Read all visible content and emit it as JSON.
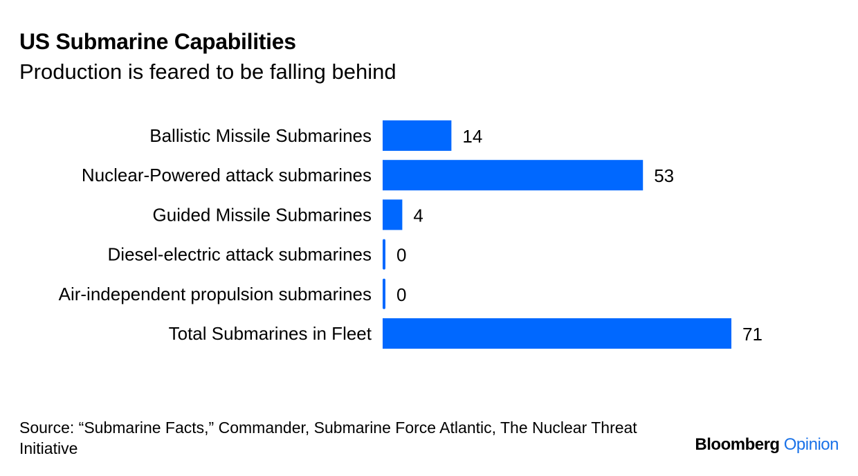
{
  "header": {
    "title": "US Submarine Capabilities",
    "subtitle": "Production is feared to be falling behind"
  },
  "footer": {
    "source": "Source: “Submarine Facts,” Commander, Submarine Force Atlantic, The Nuclear Threat Initiative",
    "brand_main": "Bloomberg",
    "brand_accent": "Opinion"
  },
  "colors": {
    "bar": "#0068ff",
    "text": "#000000",
    "brand_accent": "#1a72e8"
  },
  "chart_data": {
    "type": "bar",
    "orientation": "horizontal",
    "categories": [
      "Ballistic Missile Submarines",
      "Nuclear-Powered attack submarines",
      "Guided Missile Submarines",
      "Diesel-electric attack submarines",
      "Air-independent propulsion submarines",
      "Total Submarines in Fleet"
    ],
    "values": [
      14,
      53,
      4,
      0,
      0,
      71
    ],
    "data_labels": [
      "14",
      "53",
      "4",
      "0",
      "0",
      "71"
    ],
    "xlim": [
      0,
      71
    ],
    "grid": false,
    "legend": "none"
  }
}
